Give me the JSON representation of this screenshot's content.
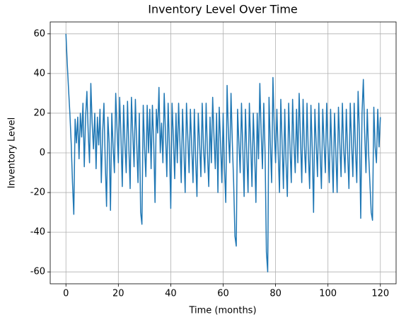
{
  "chart_data": {
    "type": "line",
    "title": "Inventory Level Over Time",
    "xlabel": "Time (months)",
    "ylabel": "Inventory Level",
    "x": [
      0,
      0.5,
      1,
      1.5,
      2,
      2.5,
      3,
      3.5,
      4,
      4.5,
      5,
      5.5,
      6,
      6.5,
      7,
      7.5,
      8,
      8.5,
      9,
      9.5,
      10,
      10.5,
      11,
      11.5,
      12,
      12.5,
      13,
      13.5,
      14,
      14.5,
      15,
      15.5,
      16,
      16.5,
      17,
      17.5,
      18,
      18.5,
      19,
      19.5,
      20,
      20.5,
      21,
      21.5,
      22,
      22.5,
      23,
      23.5,
      24,
      24.5,
      25,
      25.5,
      26,
      26.5,
      27,
      27.5,
      28,
      28.5,
      29,
      29.5,
      30,
      30.5,
      31,
      31.5,
      32,
      32.5,
      33,
      33.5,
      34,
      34.5,
      35,
      35.5,
      36,
      36.5,
      37,
      37.5,
      38,
      38.5,
      39,
      39.5,
      40,
      40.5,
      41,
      41.5,
      42,
      42.5,
      43,
      43.5,
      44,
      44.5,
      45,
      45.5,
      46,
      46.5,
      47,
      47.5,
      48,
      48.5,
      49,
      49.5,
      50,
      50.5,
      51,
      51.5,
      52,
      52.5,
      53,
      53.5,
      54,
      54.5,
      55,
      55.5,
      56,
      56.5,
      57,
      57.5,
      58,
      58.5,
      59,
      59.5,
      60,
      60.5,
      61,
      61.5,
      62,
      62.5,
      63,
      63.5,
      64,
      64.5,
      65,
      65.5,
      66,
      66.5,
      67,
      67.5,
      68,
      68.5,
      69,
      69.5,
      70,
      70.5,
      71,
      71.5,
      72,
      72.5,
      73,
      73.5,
      74,
      74.5,
      75,
      75.5,
      76,
      76.5,
      77,
      77.5,
      78,
      78.5,
      79,
      79.5,
      80,
      80.5,
      81,
      81.5,
      82,
      82.5,
      83,
      83.5,
      84,
      84.5,
      85,
      85.5,
      86,
      86.5,
      87,
      87.5,
      88,
      88.5,
      89,
      89.5,
      90,
      90.5,
      91,
      91.5,
      92,
      92.5,
      93,
      93.5,
      94,
      94.5,
      95,
      95.5,
      96,
      96.5,
      97,
      97.5,
      98,
      98.5,
      99,
      99.5,
      100,
      100.5,
      101,
      101.5,
      102,
      102.5,
      103,
      103.5,
      104,
      104.5,
      105,
      105.5,
      106,
      106.5,
      107,
      107.5,
      108,
      108.5,
      109,
      109.5,
      110,
      110.5,
      111,
      111.5,
      112,
      112.5,
      113,
      113.5,
      114,
      114.5,
      115,
      115.5,
      116,
      116.5,
      117,
      117.5,
      118,
      118.5,
      119,
      119.5,
      120
    ],
    "series": [
      {
        "name": "Inventory Level",
        "color": "#1f77b4",
        "values": [
          60,
          45,
          32,
          20,
          5,
          -15,
          -31,
          17,
          5,
          18,
          -3,
          20,
          8,
          25,
          -7,
          18,
          31,
          10,
          -5,
          35,
          15,
          2,
          20,
          -8,
          18,
          4,
          22,
          -15,
          10,
          25,
          -5,
          -27,
          18,
          5,
          -29,
          20,
          3,
          -10,
          30,
          12,
          -5,
          28,
          8,
          -17,
          24,
          5,
          -10,
          26,
          3,
          -18,
          28,
          10,
          -7,
          27,
          5,
          -15,
          20,
          -30,
          -36,
          24,
          3,
          -12,
          24,
          0,
          22,
          -8,
          24,
          5,
          -25,
          22,
          10,
          33,
          0,
          15,
          -5,
          30,
          10,
          -12,
          25,
          3,
          -28,
          25,
          8,
          -13,
          20,
          -5,
          25,
          5,
          -15,
          22,
          2,
          -20,
          25,
          8,
          -10,
          22,
          3,
          -15,
          22,
          -3,
          -22,
          20,
          5,
          -12,
          25,
          2,
          -10,
          25,
          0,
          -17,
          18,
          -5,
          28,
          8,
          -8,
          20,
          -20,
          23,
          5,
          -15,
          20,
          -8,
          -25,
          34,
          10,
          -5,
          30,
          5,
          -15,
          -42,
          -47,
          22,
          5,
          -10,
          25,
          2,
          -22,
          22,
          0,
          -20,
          25,
          5,
          -17,
          20,
          0,
          -25,
          20,
          -3,
          35,
          10,
          -8,
          25,
          0,
          -50,
          -60,
          28,
          5,
          -15,
          38,
          12,
          -5,
          22,
          0,
          -20,
          27,
          5,
          -18,
          22,
          -5,
          -22,
          25,
          3,
          -15,
          27,
          5,
          -10,
          22,
          -5,
          30,
          8,
          -15,
          27,
          3,
          -10,
          25,
          0,
          -18,
          24,
          2,
          -30,
          22,
          5,
          -12,
          25,
          0,
          -18,
          22,
          5,
          -10,
          25,
          3,
          -15,
          22,
          0,
          -20,
          20,
          0,
          -20,
          23,
          5,
          -12,
          25,
          2,
          -10,
          22,
          0,
          -18,
          25,
          5,
          -12,
          25,
          2,
          -15,
          31,
          10,
          -33,
          20,
          37,
          10,
          -10,
          22,
          0,
          -15,
          -30,
          -34,
          23,
          3,
          -5,
          22,
          3,
          18
        ]
      }
    ],
    "xlim": [
      -6,
      126
    ],
    "ylim": [
      -66,
      66
    ],
    "xticks": [
      0,
      20,
      40,
      60,
      80,
      100,
      120
    ],
    "yticks": [
      -60,
      -40,
      -20,
      0,
      20,
      40,
      60
    ],
    "grid": true
  }
}
